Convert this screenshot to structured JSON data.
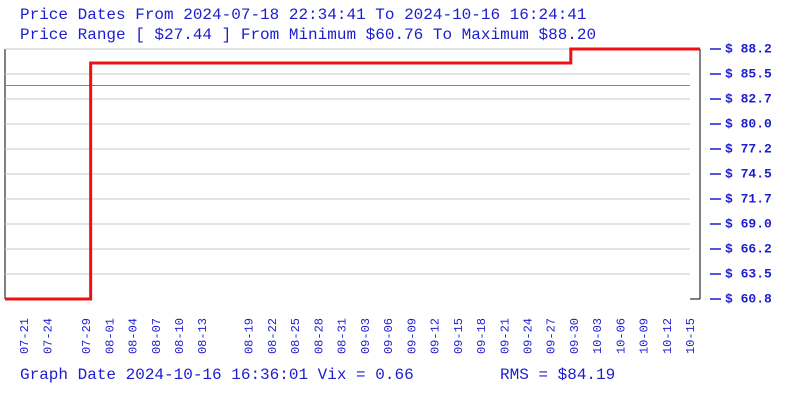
{
  "chart_data": {
    "type": "line",
    "title": "Price Dates From 2024-07-18 22:34:41 To 2024-10-16 16:24:41",
    "subtitle": "Price Range [ $27.44 ] From Minimum $60.76 To Maximum $88.20",
    "footer": "Graph Date 2024-10-16 16:36:01 Vix = 0.66",
    "rms_label": "RMS = $84.19",
    "rms": 84.19,
    "rms_color": "#22cc22",
    "xlim": [
      "2024-07-18 22:34:41",
      "2024-10-16 16:24:41"
    ],
    "xticks": [
      {
        "value": "2024-07-21",
        "label": "07-21"
      },
      {
        "value": "2024-07-24",
        "label": "07-24"
      },
      {
        "value": "2024-07-29",
        "label": "07-29"
      },
      {
        "value": "2024-08-01",
        "label": "08-01"
      },
      {
        "value": "2024-08-04",
        "label": "08-04"
      },
      {
        "value": "2024-08-07",
        "label": "08-07"
      },
      {
        "value": "2024-08-10",
        "label": "08-10"
      },
      {
        "value": "2024-08-13",
        "label": "08-13"
      },
      {
        "value": "2024-08-19",
        "label": "08-19"
      },
      {
        "value": "2024-08-22",
        "label": "08-22"
      },
      {
        "value": "2024-08-25",
        "label": "08-25"
      },
      {
        "value": "2024-08-28",
        "label": "08-28"
      },
      {
        "value": "2024-08-31",
        "label": "08-31"
      },
      {
        "value": "2024-09-03",
        "label": "09-03"
      },
      {
        "value": "2024-09-06",
        "label": "09-06"
      },
      {
        "value": "2024-09-09",
        "label": "09-09"
      },
      {
        "value": "2024-09-12",
        "label": "09-12"
      },
      {
        "value": "2024-09-15",
        "label": "09-15"
      },
      {
        "value": "2024-09-18",
        "label": "09-18"
      },
      {
        "value": "2024-09-21",
        "label": "09-21"
      },
      {
        "value": "2024-09-24",
        "label": "09-24"
      },
      {
        "value": "2024-09-27",
        "label": "09-27"
      },
      {
        "value": "2024-09-30",
        "label": "09-30"
      },
      {
        "value": "2024-10-03",
        "label": "10-03"
      },
      {
        "value": "2024-10-06",
        "label": "10-06"
      },
      {
        "value": "2024-10-09",
        "label": "10-09"
      },
      {
        "value": "2024-10-12",
        "label": "10-12"
      },
      {
        "value": "2024-10-15",
        "label": "10-15"
      }
    ],
    "ylim": [
      60.76,
      88.2
    ],
    "yticks": [
      {
        "value": 60.76,
        "label": "$ 60.8"
      },
      {
        "value": 63.504,
        "label": "$ 63.5"
      },
      {
        "value": 66.248,
        "label": "$ 66.2"
      },
      {
        "value": 68.992,
        "label": "$ 69.0"
      },
      {
        "value": 71.736,
        "label": "$ 71.7"
      },
      {
        "value": 74.48,
        "label": "$ 74.5"
      },
      {
        "value": 77.224,
        "label": "$ 77.2"
      },
      {
        "value": 79.968,
        "label": "$ 80.0"
      },
      {
        "value": 82.712,
        "label": "$ 82.7"
      },
      {
        "value": 85.456,
        "label": "$ 85.5"
      },
      {
        "value": 88.2,
        "label": "$ 88.2"
      }
    ],
    "grid": true,
    "step": "post",
    "x": [
      "2024-07-18 22:34:41",
      "2024-07-30",
      "2024-09-30",
      "2024-10-16 16:24:41"
    ],
    "series": [
      {
        "color": "#ee1111",
        "values": [
          60.76,
          86.66,
          88.2,
          88.2
        ]
      }
    ]
  }
}
